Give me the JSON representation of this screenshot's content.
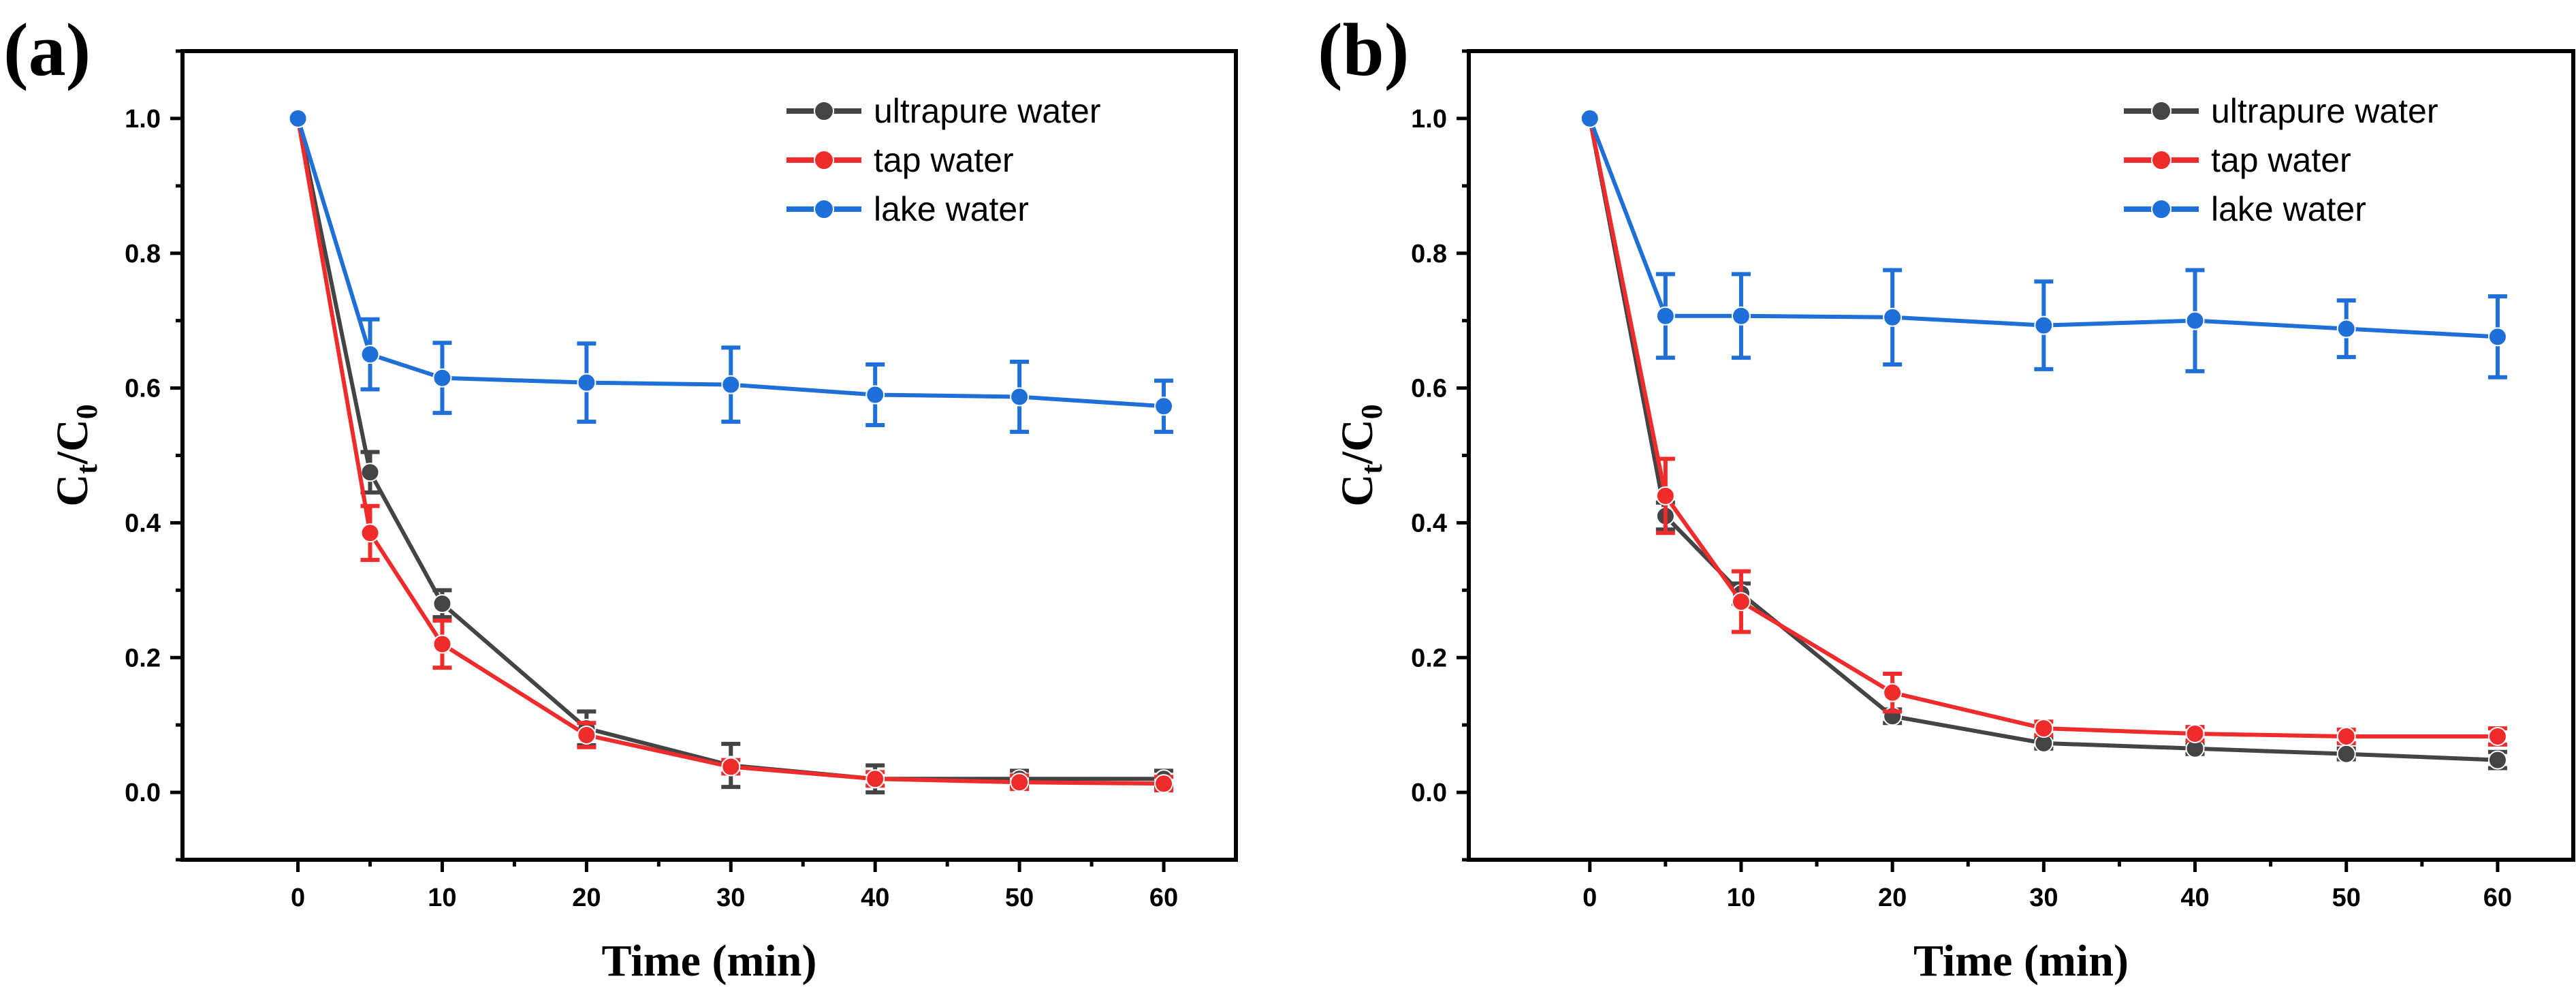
{
  "figure_labels": [
    "(a)",
    "(b)"
  ],
  "chart_data": [
    {
      "panel": "(a)",
      "type": "line",
      "title": "",
      "xlabel": "Time (min)",
      "ylabel_main": "C",
      "ylabel_sub1": "t",
      "ylabel_slash": "/C",
      "ylabel_sub2": "0",
      "xlim": [
        -8,
        65
      ],
      "ylim": [
        -0.1,
        1.1
      ],
      "xticks": [
        0,
        10,
        20,
        30,
        40,
        50,
        60
      ],
      "xtick_labels": [
        "0",
        "10",
        "20",
        "30",
        "40",
        "50",
        "60"
      ],
      "yticks": [
        0.0,
        0.2,
        0.4,
        0.6,
        0.8,
        1.0
      ],
      "ytick_labels": [
        "0.0",
        "0.2",
        "0.4",
        "0.6",
        "0.8",
        "1.0"
      ],
      "legend_position": "top-right",
      "x": [
        0,
        5,
        10,
        20,
        30,
        40,
        50,
        60
      ],
      "series": [
        {
          "name": "ultrapure water",
          "color": "#444444",
          "values": [
            1.0,
            0.475,
            0.28,
            0.095,
            0.04,
            0.02,
            0.02,
            0.02
          ],
          "errors": [
            0.0,
            0.03,
            0.02,
            0.025,
            0.032,
            0.02,
            0.012,
            0.012
          ]
        },
        {
          "name": "tap water",
          "color": "#ef2b2b",
          "values": [
            1.0,
            0.385,
            0.22,
            0.085,
            0.038,
            0.02,
            0.015,
            0.013
          ],
          "errors": [
            0.0,
            0.04,
            0.035,
            0.018,
            0.01,
            0.01,
            0.01,
            0.01
          ]
        },
        {
          "name": "lake water",
          "color": "#1f6fd8",
          "values": [
            1.0,
            0.65,
            0.615,
            0.608,
            0.605,
            0.59,
            0.587,
            0.573
          ],
          "errors": [
            0.0,
            0.052,
            0.052,
            0.058,
            0.055,
            0.045,
            0.052,
            0.038
          ]
        }
      ]
    },
    {
      "panel": "(b)",
      "type": "line",
      "title": "",
      "xlabel": "Time (min)",
      "ylabel_main": "C",
      "ylabel_sub1": "t",
      "ylabel_slash": "/C",
      "ylabel_sub2": "0",
      "xlim": [
        -8,
        65
      ],
      "ylim": [
        -0.1,
        1.1
      ],
      "xticks": [
        0,
        10,
        20,
        30,
        40,
        50,
        60
      ],
      "xtick_labels": [
        "0",
        "10",
        "20",
        "30",
        "40",
        "50",
        "60"
      ],
      "yticks": [
        0.0,
        0.2,
        0.4,
        0.6,
        0.8,
        1.0
      ],
      "ytick_labels": [
        "0.0",
        "0.2",
        "0.4",
        "0.6",
        "0.8",
        "1.0"
      ],
      "legend_position": "top-right",
      "x": [
        0,
        5,
        10,
        20,
        30,
        40,
        50,
        60
      ],
      "series": [
        {
          "name": "ultrapure water",
          "color": "#444444",
          "values": [
            1.0,
            0.41,
            0.295,
            0.113,
            0.073,
            0.065,
            0.057,
            0.048
          ],
          "errors": [
            0.0,
            0.02,
            0.015,
            0.01,
            0.008,
            0.008,
            0.008,
            0.012
          ]
        },
        {
          "name": "tap water",
          "color": "#ef2b2b",
          "values": [
            1.0,
            0.44,
            0.283,
            0.148,
            0.095,
            0.087,
            0.083,
            0.083
          ],
          "errors": [
            0.0,
            0.055,
            0.045,
            0.028,
            0.01,
            0.01,
            0.01,
            0.012
          ]
        },
        {
          "name": "lake water",
          "color": "#1f6fd8",
          "values": [
            1.0,
            0.707,
            0.707,
            0.705,
            0.693,
            0.7,
            0.688,
            0.676
          ],
          "errors": [
            0.0,
            0.062,
            0.062,
            0.07,
            0.065,
            0.075,
            0.042,
            0.06
          ]
        }
      ]
    }
  ]
}
